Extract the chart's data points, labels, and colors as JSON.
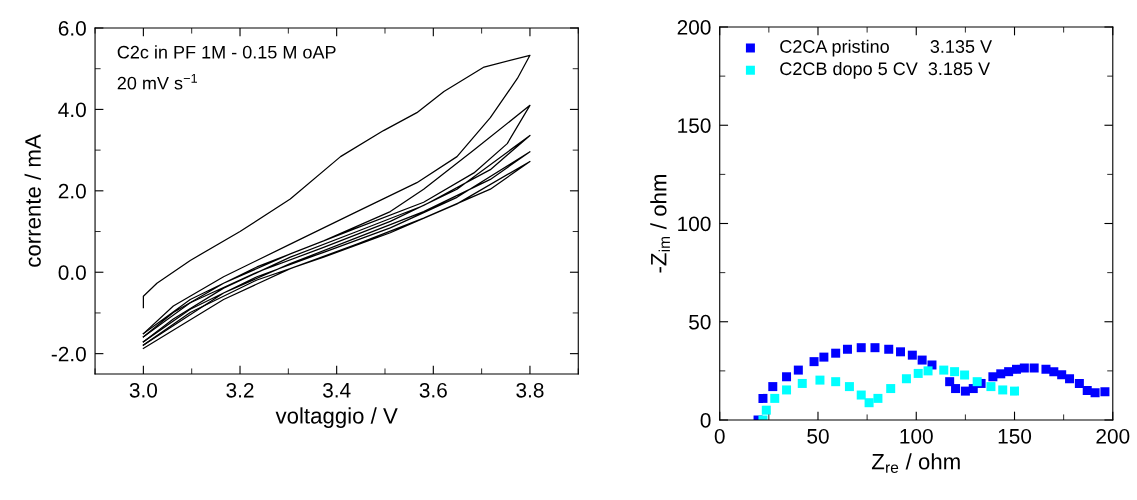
{
  "chart_data": [
    {
      "type": "line",
      "xlabel": "voltaggio / V",
      "ylabel": "corrente / mA",
      "annotations": [
        "C2c in PF 1M - 0.15 M oAP",
        "20 mV s$^{−1}$"
      ],
      "xlim": [
        2.9,
        3.9
      ],
      "ylim": [
        -2.5,
        6.0
      ],
      "xticks": [
        {
          "value": 3.0,
          "label": "3.0"
        },
        {
          "value": 3.2,
          "label": "3.2"
        },
        {
          "value": 3.4,
          "label": "3.4"
        },
        {
          "value": 3.6,
          "label": "3.6"
        },
        {
          "value": 3.8,
          "label": "3.8"
        }
      ],
      "yticks": [
        {
          "value": -2,
          "label": "-2.0"
        },
        {
          "value": 0,
          "label": "0.0"
        },
        {
          "value": 2,
          "label": "2.0"
        },
        {
          "value": 4,
          "label": "4.0"
        },
        {
          "value": 6,
          "label": "6.0"
        }
      ],
      "grid": false,
      "legend": false,
      "marker": "none",
      "line_style": "solid",
      "series": [
        {
          "color": "#000000",
          "x": [
            3.0,
            3.0,
            3.028,
            3.097,
            3.2,
            3.304,
            3.408,
            3.497,
            3.566,
            3.622,
            3.705,
            3.8,
            3.774,
            3.718,
            3.649,
            3.566,
            3.442,
            3.304,
            3.166,
            3.062,
            3.0
          ],
          "values": [
            -0.87,
            -0.59,
            -0.27,
            0.29,
            1.0,
            1.8,
            2.84,
            3.48,
            3.92,
            4.44,
            5.04,
            5.33,
            4.76,
            3.8,
            2.84,
            2.2,
            1.49,
            0.69,
            -0.11,
            -0.83,
            -1.51
          ]
        },
        {
          "color": "#000000",
          "x": [
            3.0,
            3.097,
            3.235,
            3.373,
            3.511,
            3.58,
            3.684,
            3.8,
            3.753,
            3.684,
            3.58,
            3.442,
            3.304,
            3.166,
            3.062,
            3.0
          ],
          "values": [
            -1.51,
            -0.67,
            0.13,
            0.77,
            1.49,
            2.04,
            3.0,
            4.1,
            3.16,
            2.44,
            1.72,
            1.09,
            0.45,
            -0.27,
            -0.99,
            -1.59
          ]
        },
        {
          "color": "#000000",
          "x": [
            3.0,
            3.097,
            3.235,
            3.373,
            3.511,
            3.649,
            3.8,
            3.718,
            3.58,
            3.442,
            3.304,
            3.166,
            3.062,
            3.0
          ],
          "values": [
            -1.59,
            -0.75,
            0.0,
            0.61,
            1.25,
            2.04,
            3.36,
            2.52,
            1.64,
            1.0,
            0.37,
            -0.39,
            -1.15,
            -1.71
          ]
        },
        {
          "color": "#000000",
          "x": [
            3.0,
            3.097,
            3.235,
            3.373,
            3.511,
            3.649,
            3.8,
            3.718,
            3.58,
            3.442,
            3.304,
            3.166,
            3.0
          ],
          "values": [
            -1.71,
            -0.91,
            -0.11,
            0.49,
            1.09,
            1.84,
            2.96,
            2.28,
            1.49,
            0.85,
            0.21,
            -0.51,
            -1.79
          ]
        },
        {
          "color": "#000000",
          "x": [
            3.0,
            3.097,
            3.235,
            3.373,
            3.511,
            3.649,
            3.8,
            3.718,
            3.58,
            3.442,
            3.304,
            3.166,
            3.0
          ],
          "values": [
            -1.79,
            -0.99,
            -0.19,
            0.37,
            0.97,
            1.68,
            2.72,
            2.04,
            1.33,
            0.69,
            0.09,
            -0.67,
            -1.87
          ]
        }
      ]
    },
    {
      "type": "scatter",
      "xlabel": "Z$_{re}$ / ohm",
      "ylabel": "-Z$_{im}$ / ohm",
      "xlim": [
        0,
        200
      ],
      "ylim": [
        0,
        200
      ],
      "xticks": [
        0,
        50,
        100,
        150,
        200
      ],
      "yticks": [
        0,
        50,
        100,
        150,
        200
      ],
      "grid": false,
      "legend": "top left",
      "marker": "square",
      "series": [
        {
          "name": "C2CA pristino        3.135 V",
          "color": "#0000ff",
          "x": [
            19.5,
            22,
            27,
            34,
            40,
            48,
            53,
            59,
            65,
            72,
            79,
            86,
            92,
            98,
            103,
            108,
            117,
            120,
            125,
            129,
            133,
            139,
            143,
            147,
            151,
            155,
            160,
            166,
            170,
            174,
            178,
            183,
            187,
            191,
            196
          ],
          "values": [
            0,
            11,
            17,
            22,
            25.4,
            29.7,
            32,
            34,
            36,
            36.8,
            36.8,
            36,
            34.7,
            33,
            30.5,
            28,
            19.5,
            16,
            14.7,
            16,
            18.6,
            22,
            23.5,
            24.6,
            25.8,
            26.4,
            26.4,
            25.8,
            24.6,
            23,
            21,
            18.6,
            15,
            13.9,
            14.4
          ]
        },
        {
          "name": "C2CB dopo 5 CV  3.185 V",
          "color": "#00ffff",
          "x": [
            22,
            23.7,
            28,
            34,
            42,
            51,
            59,
            66,
            72,
            76,
            80.5,
            87,
            95,
            101,
            106,
            114,
            119.5,
            124.6,
            131,
            138,
            144,
            150
          ],
          "values": [
            0,
            5,
            11,
            15.3,
            18.6,
            20.3,
            19.5,
            17,
            12.7,
            8.8,
            11,
            16,
            21,
            23.7,
            25,
            25.4,
            24.6,
            22.9,
            19.5,
            17,
            15.3,
            14.7
          ]
        }
      ]
    }
  ]
}
